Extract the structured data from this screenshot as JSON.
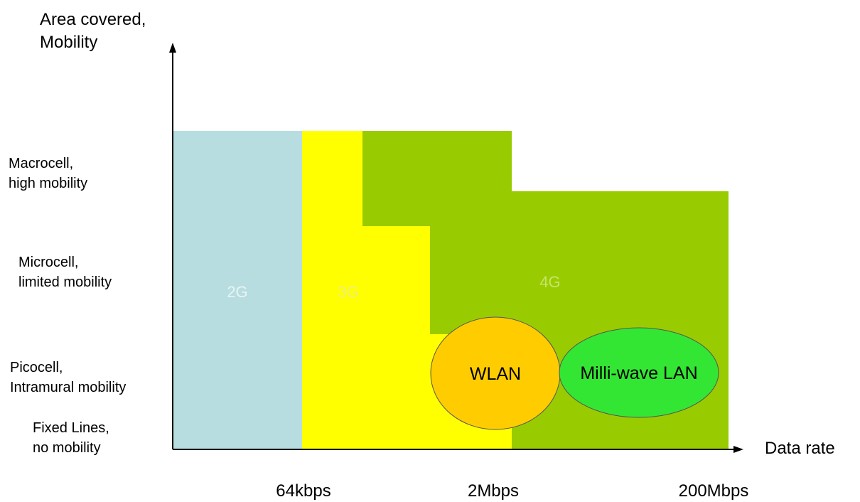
{
  "axes": {
    "y_title_line1": "Area covered,",
    "y_title_line2": "Mobility",
    "x_title": "Data rate"
  },
  "levels": [
    {
      "line1": "Macrocell,",
      "line2": "high mobility"
    },
    {
      "line1": "Microcell,",
      "line2": "limited mobility"
    },
    {
      "line1": "Picocell,",
      "line2": "Intramural mobility"
    },
    {
      "line1": "Fixed Lines,",
      "line2": "no mobility"
    }
  ],
  "rates": [
    "64kbps",
    "2Mbps",
    "200Mbps"
  ],
  "regions": [
    {
      "label": "2G",
      "color": "#b7dde0"
    },
    {
      "label": "3G",
      "color": "#ffff00"
    },
    {
      "label": "4G",
      "color": "#99cc00"
    }
  ],
  "ellipses": [
    {
      "label": "WLAN",
      "color": "#ffcc00"
    },
    {
      "label": "Milli-wave LAN",
      "color": "#33e633"
    }
  ]
}
